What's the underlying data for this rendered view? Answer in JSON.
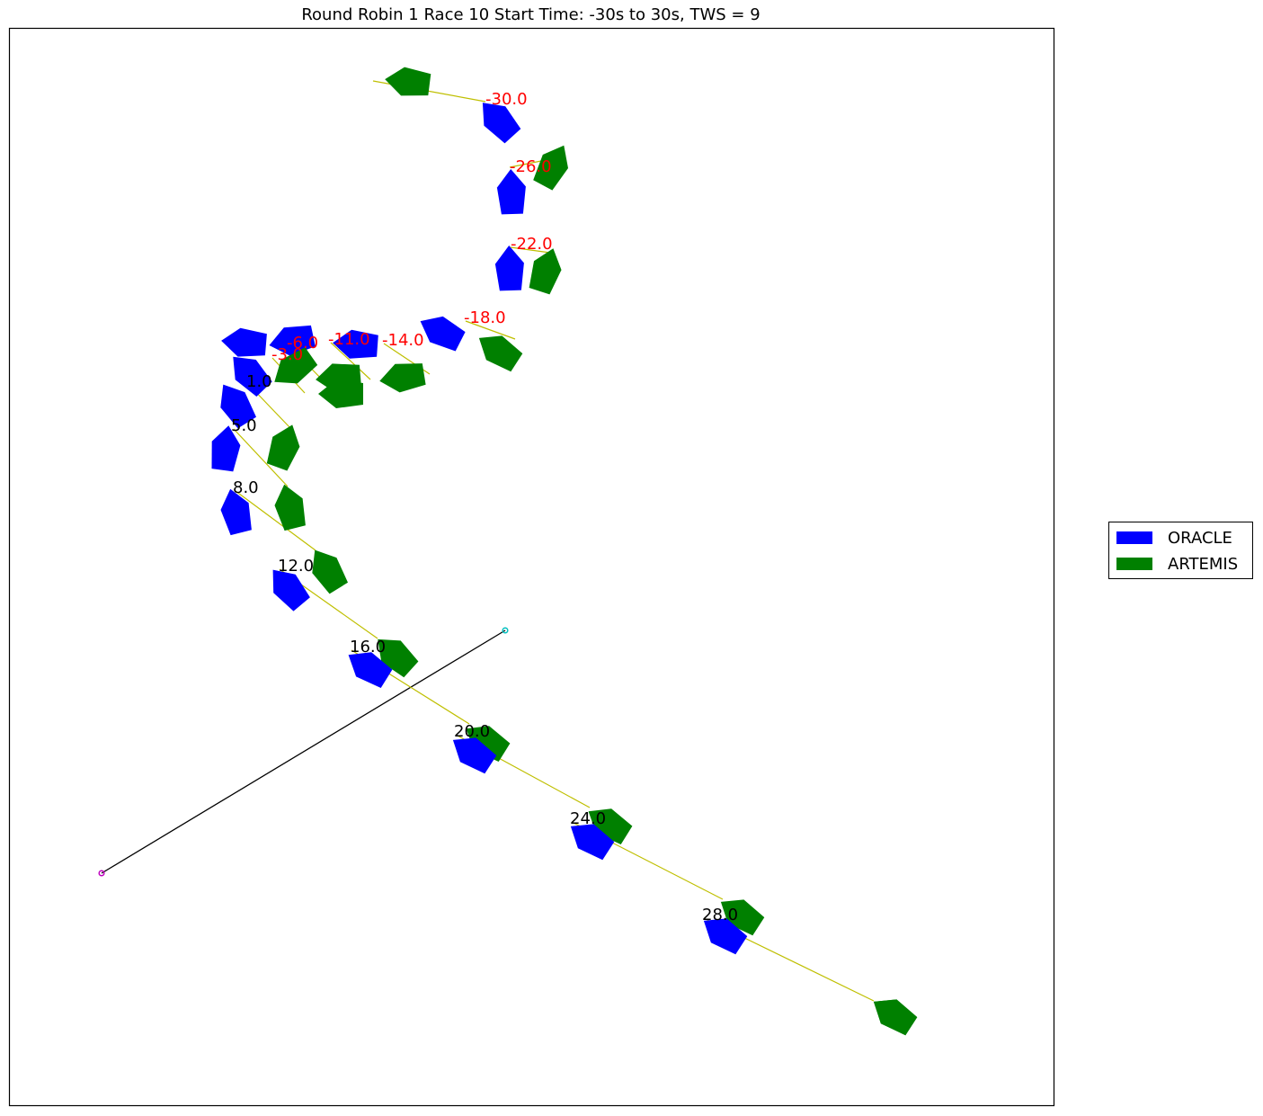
{
  "chart_data": {
    "type": "scatter",
    "title": "Round Robin 1 Race 10 Start Time: -30s to 30s, TWS = 9",
    "xlabel": "",
    "ylabel": "",
    "grid": false,
    "legend_placement": "right",
    "axes_ticks_shown": false,
    "series": [
      {
        "name": "ORACLE",
        "color": "#0000ff"
      },
      {
        "name": "ARTEMIS",
        "color": "#008000"
      }
    ],
    "time_labels": [
      {
        "t": -30.0,
        "text": "-30.0",
        "color": "#ff0000"
      },
      {
        "t": -26.0,
        "text": "-26.0",
        "color": "#ff0000"
      },
      {
        "t": -22.0,
        "text": "-22.0",
        "color": "#ff0000"
      },
      {
        "t": -18.0,
        "text": "-18.0",
        "color": "#ff0000"
      },
      {
        "t": -14.0,
        "text": "-14.0",
        "color": "#ff0000"
      },
      {
        "t": -11.0,
        "text": "-11.0",
        "color": "#ff0000"
      },
      {
        "t": -6.0,
        "text": "-6.0",
        "color": "#ff0000"
      },
      {
        "t": -3.0,
        "text": "-3.0",
        "color": "#ff0000"
      },
      {
        "t": 1.0,
        "text": "1.0",
        "color": "#000000"
      },
      {
        "t": 5.0,
        "text": "5.0",
        "color": "#000000"
      },
      {
        "t": 8.0,
        "text": "8.0",
        "color": "#000000"
      },
      {
        "t": 12.0,
        "text": "12.0",
        "color": "#000000"
      },
      {
        "t": 16.0,
        "text": "16.0",
        "color": "#000000"
      },
      {
        "t": 20.0,
        "text": "20.0",
        "color": "#000000"
      },
      {
        "t": 24.0,
        "text": "24.0",
        "color": "#000000"
      },
      {
        "t": 28.0,
        "text": "28.0",
        "color": "#000000"
      }
    ],
    "start_line": {
      "pin_color": "#bf00bf",
      "committee_color": "#00bfbf",
      "line_color": "#000000"
    },
    "connector_color": "#bfbf00"
  }
}
